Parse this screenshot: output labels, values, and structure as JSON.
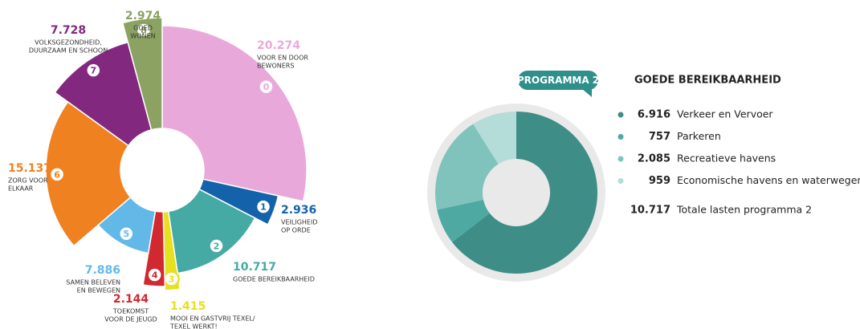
{
  "chart_data": [
    {
      "type": "pie",
      "codes": [
        "0",
        "1",
        "2",
        "3",
        "4",
        "5",
        "6",
        "7",
        "8"
      ],
      "categories": [
        [
          "VOOR EN DOOR",
          "BEWONERS"
        ],
        [
          "VEILIGHEID",
          "OP ORDE"
        ],
        [
          "GOEDE BEREIKBAARHEID"
        ],
        [
          "MOOI EN GASTVRIJ TEXEL/",
          "TEXEL WERKT!"
        ],
        [
          "TOEKOMST",
          "VOOR DE JEUGD"
        ],
        [
          "SAMEN BELEVEN",
          "EN BEWEGEN"
        ],
        [
          "ZORG VOOR",
          "ELKAAR"
        ],
        [
          "VOLKSGEZONDHEID,",
          "DUURZAAM EN SCHOON"
        ],
        [
          "GOED",
          "WONEN"
        ]
      ],
      "values": [
        20274,
        2936,
        10717,
        1415,
        2144,
        7886,
        15137,
        7728,
        2974
      ],
      "value_labels": [
        "20.274",
        "2.936",
        "10.717",
        "1.415",
        "2.144",
        "7.886",
        "15.137",
        "7.728",
        "2.974"
      ],
      "colors": [
        "#e8a9da",
        "#1462aa",
        "#45aaa3",
        "#e6e01e",
        "#d2282f",
        "#62b9e8",
        "#ef8121",
        "#82297f",
        "#8ba262"
      ]
    },
    {
      "type": "donut",
      "badge": "PROGRAMMA 2",
      "title": "GOEDE BEREIKBAARHEID",
      "categories": [
        "Verkeer en Vervoer",
        "Parkeren",
        "Recreatieve havens",
        "Economische havens en waterwegen"
      ],
      "values": [
        6916,
        757,
        2085,
        959
      ],
      "value_labels": [
        "6.916",
        "757",
        "2.085",
        "959"
      ],
      "colors": [
        "#3e8d87",
        "#4fa9a3",
        "#80c3bd",
        "#b4dcd9"
      ],
      "total": 10717,
      "total_label": "10.717",
      "total_text": "Totale lasten programma 2"
    }
  ]
}
